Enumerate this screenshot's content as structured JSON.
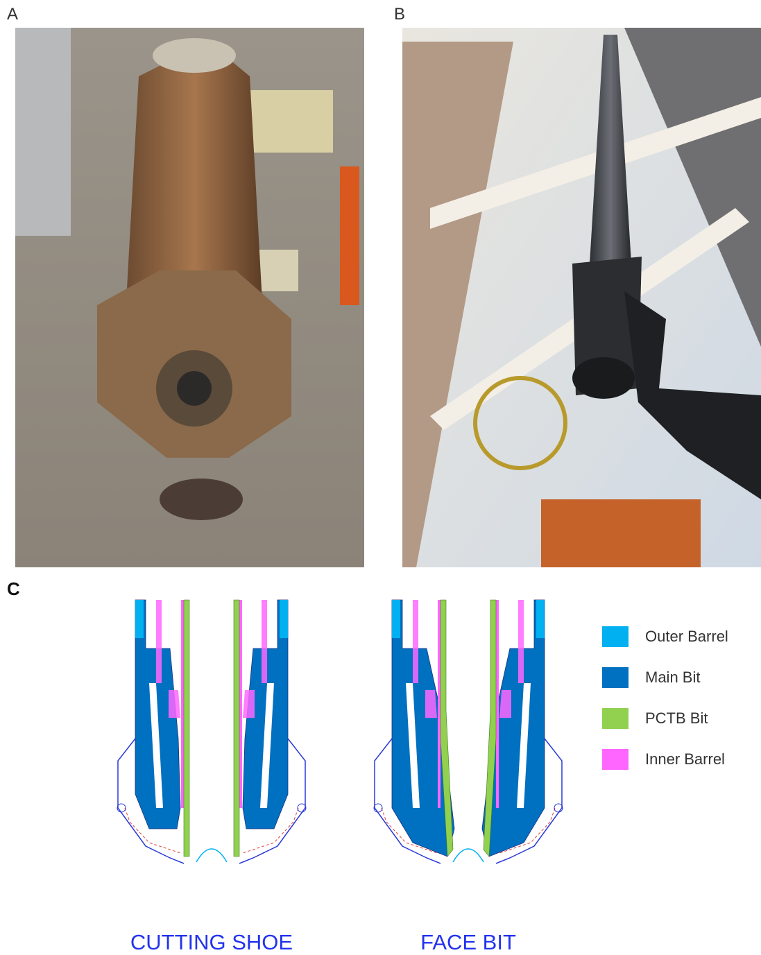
{
  "panels": [
    {
      "label": "A"
    },
    {
      "label": "B"
    },
    {
      "label": "C"
    }
  ],
  "legend": [
    {
      "label": "Outer Barrel",
      "color": "#00b0f0"
    },
    {
      "label": "Main Bit",
      "color": "#0070c0"
    },
    {
      "label": "PCTB Bit",
      "color": "#92d050"
    },
    {
      "label": "Inner Barrel",
      "color": "#ff66ff"
    }
  ],
  "diagrams": [
    {
      "caption": "CUTTING SHOE"
    },
    {
      "caption": "FACE BIT"
    }
  ]
}
